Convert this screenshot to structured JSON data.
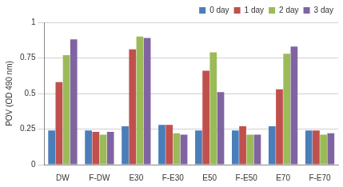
{
  "chart_data": {
    "type": "bar",
    "y_label": "POV (OD 490 nm)",
    "categories": [
      "DW",
      "F-DW",
      "E30",
      "F-E30",
      "E50",
      "F-E50",
      "E70",
      "F-E70"
    ],
    "series": [
      {
        "name": "0 day",
        "color": "#4a7ebb",
        "values": [
          0.24,
          0.24,
          0.27,
          0.28,
          0.24,
          0.24,
          0.27,
          0.24
        ]
      },
      {
        "name": "1 day",
        "color": "#c0504d",
        "values": [
          0.58,
          0.23,
          0.81,
          0.28,
          0.66,
          0.27,
          0.53,
          0.24
        ]
      },
      {
        "name": "2 day",
        "color": "#9bbb59",
        "values": [
          0.77,
          0.21,
          0.9,
          0.22,
          0.79,
          0.21,
          0.78,
          0.21
        ]
      },
      {
        "name": "3 day",
        "color": "#8064a2",
        "values": [
          0.88,
          0.23,
          0.89,
          0.21,
          0.51,
          0.21,
          0.83,
          0.22
        ]
      }
    ],
    "ylim": [
      0,
      1
    ],
    "yticks": [
      0,
      0.25,
      0.5,
      0.75,
      1
    ],
    "grid": true,
    "legend": "upper right"
  }
}
